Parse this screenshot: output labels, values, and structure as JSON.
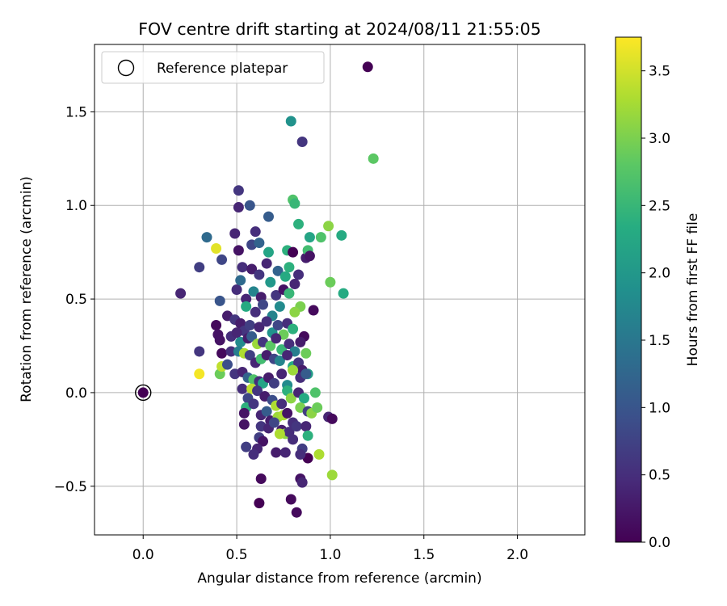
{
  "chart_data": {
    "type": "scatter",
    "title": "FOV centre drift starting at 2024/08/11 21:55:05",
    "xlabel": "Angular distance from reference (arcmin)",
    "ylabel": "Rotation from reference (arcmin)",
    "xlim": [
      -0.26,
      2.36
    ],
    "ylim": [
      -0.76,
      1.86
    ],
    "xticks": [
      0.0,
      0.5,
      1.0,
      1.5,
      2.0
    ],
    "xtick_labels": [
      "0.0",
      "0.5",
      "1.0",
      "1.5",
      "2.0"
    ],
    "yticks": [
      -0.5,
      0.0,
      0.5,
      1.0,
      1.5
    ],
    "ytick_labels": [
      "−0.5",
      "0.0",
      "0.5",
      "1.0",
      "1.5"
    ],
    "grid": true,
    "legend": {
      "position": "upper-left",
      "entries": [
        {
          "label": "Reference platepar",
          "marker": "open-circle"
        }
      ]
    },
    "colorbar": {
      "label": "Hours from first FF file",
      "colormap": "viridis",
      "range": [
        0.0,
        3.75
      ],
      "ticks": [
        0.0,
        0.5,
        1.0,
        1.5,
        2.0,
        2.5,
        3.0,
        3.5
      ],
      "tick_labels": [
        "0.0",
        "0.5",
        "1.0",
        "1.5",
        "2.0",
        "2.5",
        "3.0",
        "3.5"
      ]
    },
    "reference_point": {
      "x": 0.0,
      "y": 0.0,
      "value": 0.0
    },
    "points": [
      [
        1.2,
        1.74,
        0.0
      ],
      [
        0.79,
        1.45,
        1.9
      ],
      [
        0.85,
        1.34,
        0.6
      ],
      [
        1.23,
        1.25,
        2.8
      ],
      [
        0.51,
        1.08,
        0.6
      ],
      [
        0.57,
        1.0,
        1.0
      ],
      [
        0.51,
        0.99,
        0.4
      ],
      [
        0.67,
        0.94,
        1.1
      ],
      [
        0.8,
        1.03,
        2.7
      ],
      [
        0.81,
        1.01,
        2.5
      ],
      [
        0.83,
        0.9,
        2.4
      ],
      [
        0.6,
        0.86,
        0.5
      ],
      [
        0.49,
        0.85,
        0.4
      ],
      [
        0.89,
        0.83,
        2.2
      ],
      [
        0.95,
        0.83,
        2.7
      ],
      [
        0.99,
        0.89,
        3.1
      ],
      [
        1.06,
        0.84,
        2.3
      ],
      [
        0.34,
        0.83,
        1.3
      ],
      [
        0.39,
        0.77,
        3.6
      ],
      [
        0.42,
        0.71,
        0.8
      ],
      [
        0.51,
        0.76,
        0.2
      ],
      [
        0.58,
        0.79,
        0.8
      ],
      [
        0.62,
        0.8,
        1.2
      ],
      [
        0.67,
        0.75,
        2.2
      ],
      [
        0.77,
        0.76,
        2.4
      ],
      [
        0.8,
        0.75,
        0.0
      ],
      [
        0.87,
        0.72,
        0.3
      ],
      [
        0.88,
        0.76,
        2.6
      ],
      [
        0.89,
        0.73,
        0.2
      ],
      [
        0.3,
        0.67,
        0.7
      ],
      [
        0.53,
        0.67,
        0.5
      ],
      [
        0.58,
        0.66,
        0.3
      ],
      [
        0.62,
        0.63,
        0.6
      ],
      [
        0.66,
        0.69,
        0.4
      ],
      [
        0.72,
        0.65,
        1.2
      ],
      [
        0.76,
        0.62,
        2.3
      ],
      [
        0.78,
        0.67,
        2.4
      ],
      [
        0.83,
        0.63,
        0.5
      ],
      [
        1.0,
        0.59,
        2.9
      ],
      [
        1.07,
        0.53,
        2.3
      ],
      [
        0.2,
        0.53,
        0.4
      ],
      [
        0.41,
        0.49,
        1.0
      ],
      [
        0.5,
        0.55,
        0.5
      ],
      [
        0.52,
        0.6,
        1.3
      ],
      [
        0.55,
        0.5,
        0.4
      ],
      [
        0.59,
        0.54,
        1.7
      ],
      [
        0.63,
        0.51,
        0.3
      ],
      [
        0.68,
        0.59,
        2.0
      ],
      [
        0.71,
        0.52,
        0.6
      ],
      [
        0.75,
        0.55,
        0.2
      ],
      [
        0.78,
        0.53,
        2.5
      ],
      [
        0.81,
        0.58,
        0.4
      ],
      [
        0.84,
        0.46,
        3.0
      ],
      [
        0.91,
        0.44,
        0.1
      ],
      [
        0.55,
        0.46,
        2.3
      ],
      [
        0.6,
        0.43,
        0.5
      ],
      [
        0.64,
        0.47,
        0.8
      ],
      [
        0.69,
        0.41,
        1.7
      ],
      [
        0.73,
        0.46,
        1.8
      ],
      [
        0.81,
        0.43,
        3.1
      ],
      [
        0.45,
        0.41,
        0.3
      ],
      [
        0.39,
        0.36,
        0.1
      ],
      [
        0.49,
        0.39,
        0.6
      ],
      [
        0.52,
        0.37,
        0.3
      ],
      [
        0.54,
        0.33,
        0.6
      ],
      [
        0.57,
        0.36,
        0.7
      ],
      [
        0.62,
        0.35,
        0.4
      ],
      [
        0.66,
        0.38,
        0.5
      ],
      [
        0.69,
        0.32,
        1.9
      ],
      [
        0.72,
        0.36,
        0.8
      ],
      [
        0.75,
        0.31,
        2.9
      ],
      [
        0.77,
        0.37,
        0.5
      ],
      [
        0.8,
        0.34,
        2.4
      ],
      [
        0.86,
        0.3,
        0.1
      ],
      [
        0.4,
        0.31,
        0.2
      ],
      [
        0.41,
        0.28,
        0.2
      ],
      [
        0.47,
        0.3,
        0.5
      ],
      [
        0.5,
        0.32,
        0.4
      ],
      [
        0.52,
        0.27,
        1.8
      ],
      [
        0.56,
        0.29,
        0.3
      ],
      [
        0.58,
        0.3,
        1.1
      ],
      [
        0.61,
        0.26,
        3.2
      ],
      [
        0.64,
        0.27,
        0.6
      ],
      [
        0.68,
        0.25,
        2.8
      ],
      [
        0.71,
        0.29,
        0.4
      ],
      [
        0.74,
        0.23,
        2.5
      ],
      [
        0.78,
        0.26,
        0.5
      ],
      [
        0.81,
        0.22,
        1.6
      ],
      [
        0.84,
        0.27,
        0.3
      ],
      [
        0.87,
        0.21,
        2.9
      ],
      [
        0.42,
        0.21,
        0.1
      ],
      [
        0.3,
        0.22,
        0.6
      ],
      [
        0.47,
        0.22,
        0.5
      ],
      [
        0.51,
        0.22,
        1.6
      ],
      [
        0.54,
        0.21,
        3.3
      ],
      [
        0.57,
        0.2,
        0.7
      ],
      [
        0.6,
        0.16,
        0.4
      ],
      [
        0.63,
        0.18,
        2.6
      ],
      [
        0.66,
        0.2,
        0.3
      ],
      [
        0.7,
        0.18,
        0.8
      ],
      [
        0.73,
        0.17,
        1.7
      ],
      [
        0.77,
        0.2,
        0.4
      ],
      [
        0.8,
        0.14,
        2.3
      ],
      [
        0.83,
        0.16,
        0.6
      ],
      [
        0.85,
        0.12,
        0.3
      ],
      [
        0.88,
        0.1,
        2.1
      ],
      [
        0.3,
        0.1,
        3.7
      ],
      [
        0.41,
        0.1,
        2.9
      ],
      [
        0.42,
        0.14,
        3.4
      ],
      [
        0.45,
        0.15,
        0.9
      ],
      [
        0.49,
        0.1,
        0.6
      ],
      [
        0.53,
        0.11,
        0.4
      ],
      [
        0.56,
        0.08,
        1.2
      ],
      [
        0.59,
        0.07,
        2.7
      ],
      [
        0.62,
        0.06,
        0.5
      ],
      [
        0.64,
        0.05,
        2.2
      ],
      [
        0.67,
        0.08,
        0.3
      ],
      [
        0.7,
        0.05,
        0.7
      ],
      [
        0.74,
        0.1,
        0.4
      ],
      [
        0.77,
        0.04,
        1.8
      ],
      [
        0.8,
        0.12,
        3.2
      ],
      [
        0.84,
        0.08,
        0.5
      ],
      [
        0.87,
        0.1,
        1.1
      ],
      [
        0.53,
        0.02,
        0.5
      ],
      [
        0.58,
        0.02,
        3.4
      ],
      [
        0.61,
        0.01,
        0.6
      ],
      [
        0.65,
        -0.02,
        0.3
      ],
      [
        0.69,
        -0.04,
        0.9
      ],
      [
        0.71,
        -0.07,
        3.3
      ],
      [
        0.74,
        -0.06,
        0.5
      ],
      [
        0.77,
        0.01,
        2.4
      ],
      [
        0.79,
        -0.03,
        3.1
      ],
      [
        0.83,
        0.0,
        0.4
      ],
      [
        0.86,
        -0.03,
        2.3
      ],
      [
        0.92,
        0.0,
        2.7
      ],
      [
        0.56,
        -0.03,
        0.8
      ],
      [
        0.55,
        -0.08,
        2.4
      ],
      [
        0.59,
        -0.06,
        0.6
      ],
      [
        0.54,
        -0.11,
        0.2
      ],
      [
        0.63,
        -0.12,
        0.4
      ],
      [
        0.66,
        -0.1,
        1.1
      ],
      [
        0.68,
        -0.15,
        0.3
      ],
      [
        0.72,
        -0.13,
        3.2
      ],
      [
        0.75,
        -0.12,
        3.3
      ],
      [
        0.77,
        -0.11,
        0.2
      ],
      [
        0.8,
        -0.16,
        0.5
      ],
      [
        0.84,
        -0.08,
        3.0
      ],
      [
        0.88,
        -0.1,
        0.7
      ],
      [
        0.9,
        -0.11,
        3.1
      ],
      [
        0.93,
        -0.08,
        2.9
      ],
      [
        0.99,
        -0.13,
        0.4
      ],
      [
        1.01,
        -0.14,
        0.1
      ],
      [
        0.54,
        -0.17,
        0.2
      ],
      [
        0.63,
        -0.18,
        0.6
      ],
      [
        0.67,
        -0.19,
        0.4
      ],
      [
        0.7,
        -0.16,
        0.8
      ],
      [
        0.74,
        -0.2,
        0.3
      ],
      [
        0.76,
        -0.22,
        3.1
      ],
      [
        0.78,
        -0.21,
        0.5
      ],
      [
        0.82,
        -0.18,
        0.6
      ],
      [
        0.87,
        -0.18,
        0.4
      ],
      [
        0.88,
        -0.23,
        2.4
      ],
      [
        0.62,
        -0.24,
        0.7
      ],
      [
        0.64,
        -0.26,
        0.2
      ],
      [
        0.71,
        -0.32,
        0.3
      ],
      [
        0.73,
        -0.22,
        3.3
      ],
      [
        0.76,
        -0.32,
        0.4
      ],
      [
        0.8,
        -0.25,
        0.5
      ],
      [
        0.85,
        -0.3,
        0.7
      ],
      [
        0.88,
        -0.35,
        0.0
      ],
      [
        0.55,
        -0.29,
        0.7
      ],
      [
        0.61,
        -0.3,
        0.4
      ],
      [
        0.84,
        -0.33,
        0.5
      ],
      [
        0.94,
        -0.33,
        3.3
      ],
      [
        0.59,
        -0.33,
        0.5
      ],
      [
        0.63,
        -0.46,
        0.1
      ],
      [
        0.84,
        -0.46,
        0.2
      ],
      [
        0.85,
        -0.48,
        0.4
      ],
      [
        1.01,
        -0.44,
        3.2
      ],
      [
        0.79,
        -0.57,
        0.1
      ],
      [
        0.62,
        -0.59,
        0.0
      ],
      [
        0.82,
        -0.64,
        0.1
      ]
    ]
  }
}
